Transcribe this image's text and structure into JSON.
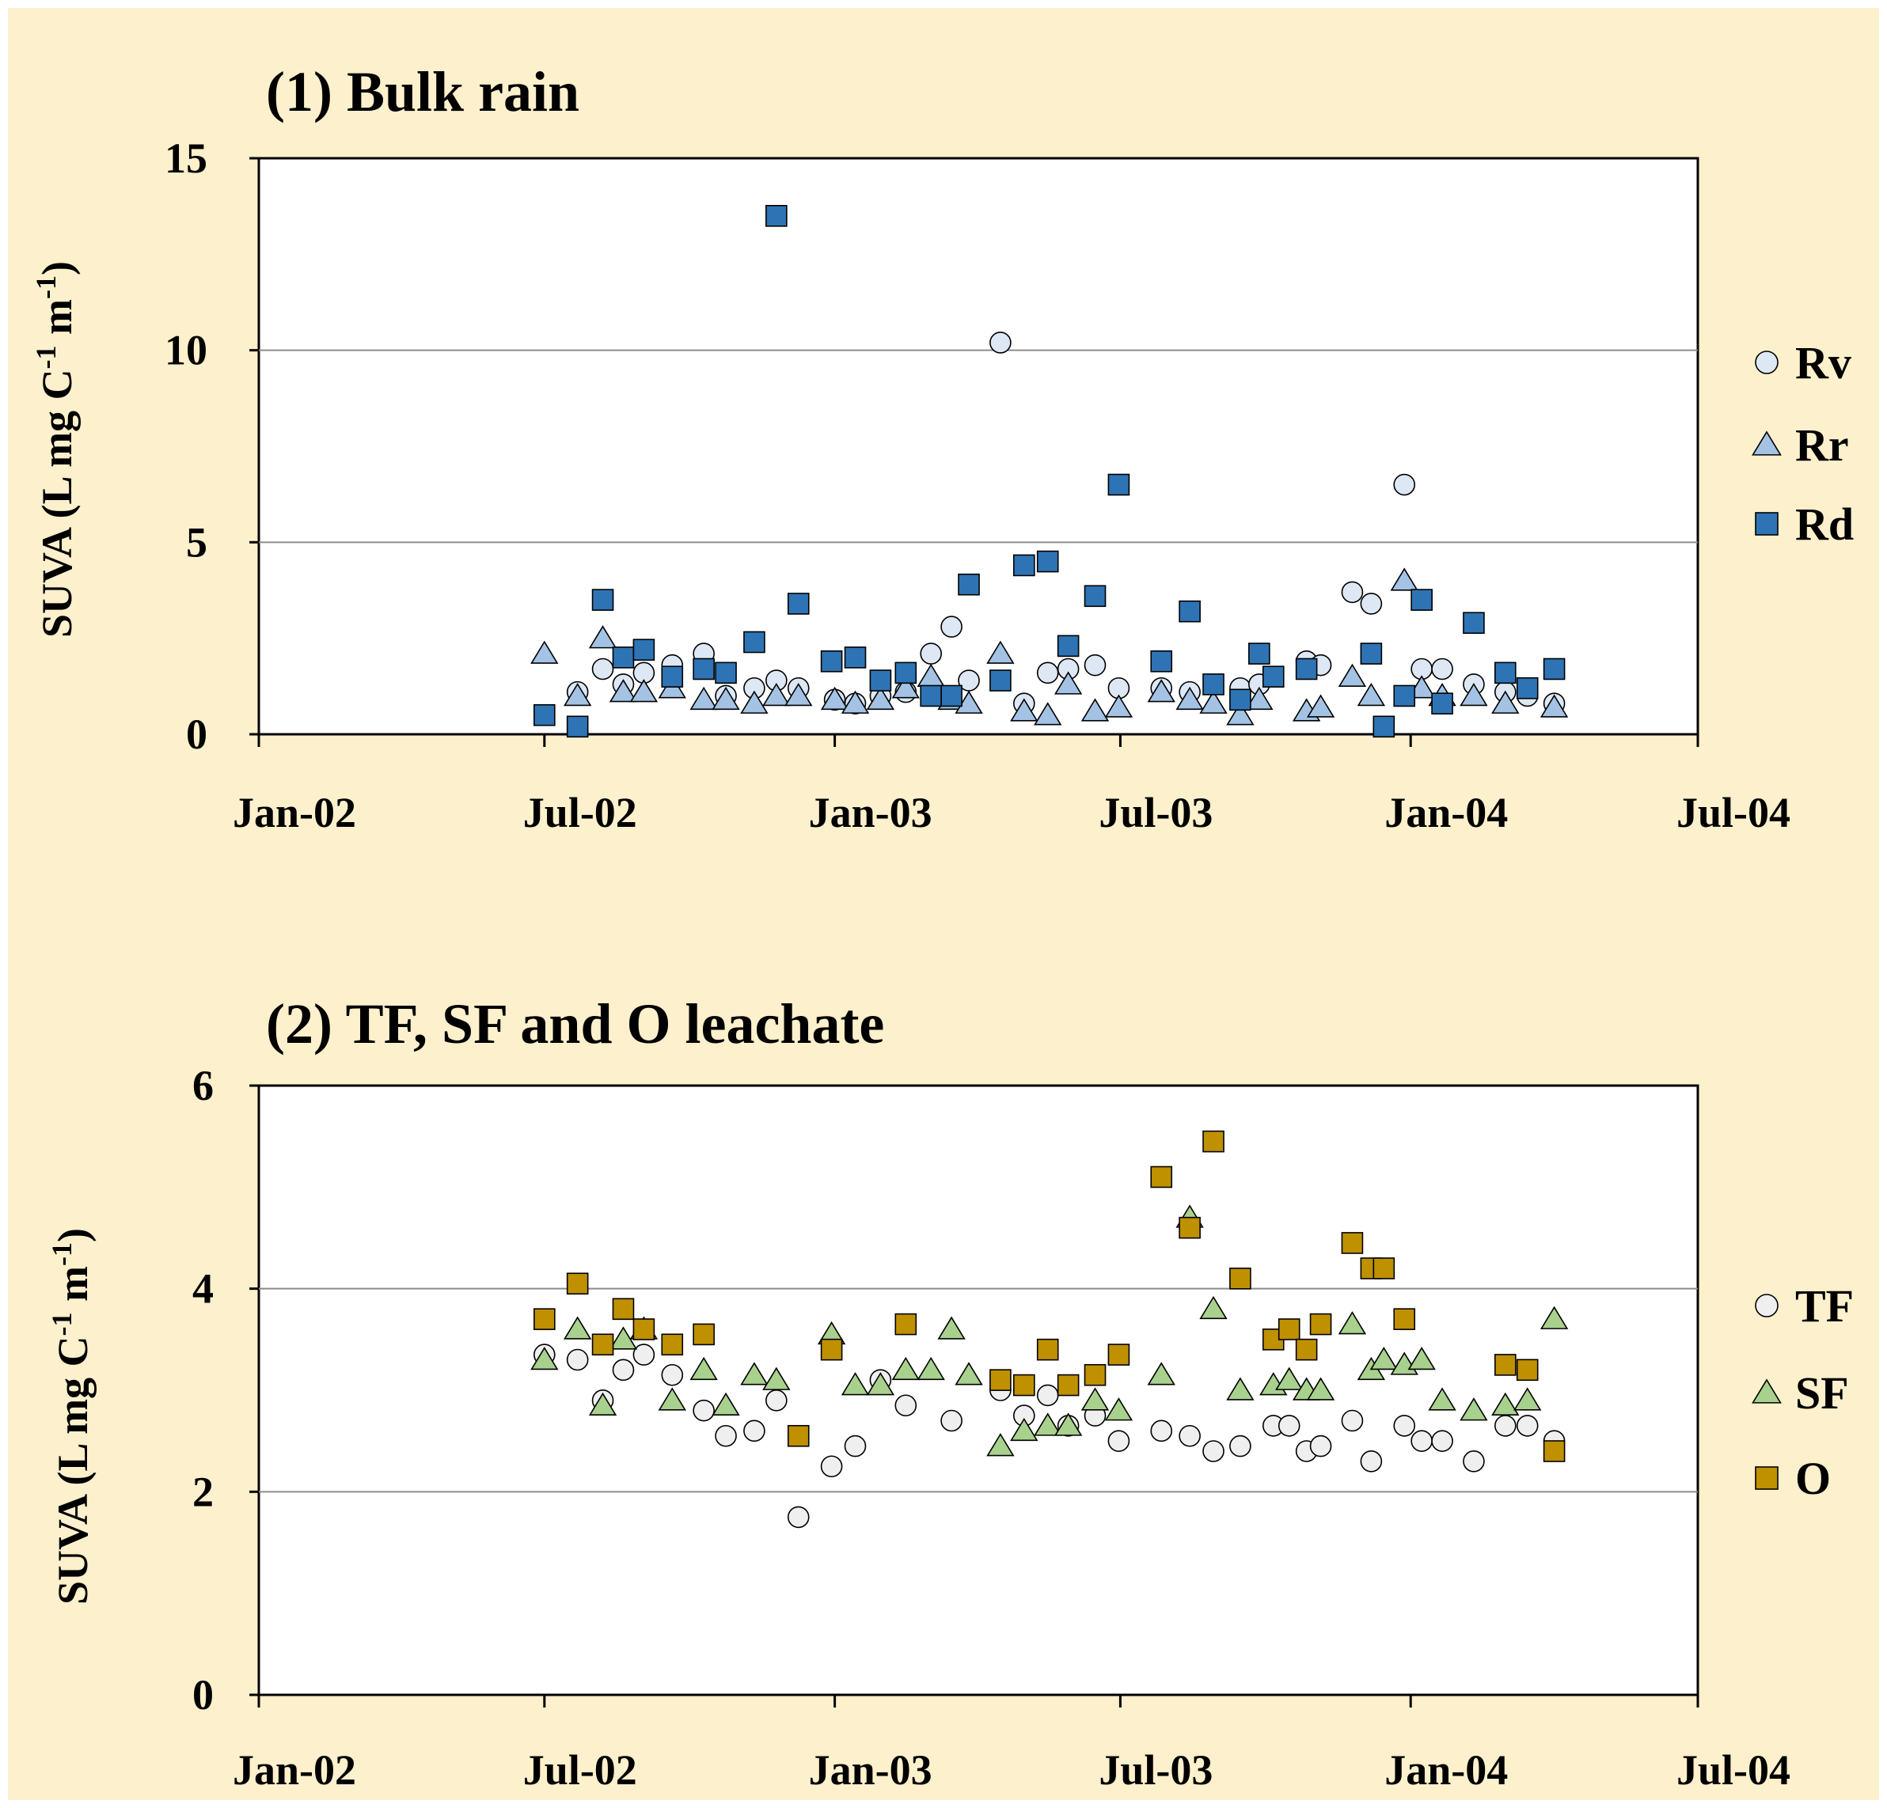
{
  "chart_data": [
    {
      "type": "scatter",
      "title": "(1) Bulk rain",
      "ylabel": "SUVA (L mg C",
      "ylabel_sup1": "-1",
      "ylabel_mid": " m",
      "ylabel_sup2": "-1",
      "ylabel_end": ")",
      "xlim": [
        "2002-01-01",
        "2004-07-01"
      ],
      "ylim": [
        0,
        15
      ],
      "x_ticks": [
        "2002-01-01",
        "2002-07-01",
        "2003-01-01",
        "2003-07-01",
        "2004-01-01",
        "2004-07-01"
      ],
      "x_tick_labels": [
        "Jan-02",
        "Jul-02",
        "Jan-03",
        "Jul-03",
        "Jan-04",
        "Jul-04"
      ],
      "y_ticks": [
        0,
        5,
        10,
        15
      ],
      "y_tick_labels": [
        "0",
        "5",
        "10",
        "15"
      ],
      "grid": "horizontal",
      "legend": "right",
      "series": [
        {
          "name": "Rv",
          "marker": "circle",
          "color": "#dde8f4",
          "points": [
            [
              "2002-07-22",
              1.1
            ],
            [
              "2002-08-07",
              1.7
            ],
            [
              "2002-08-20",
              1.3
            ],
            [
              "2002-09-02",
              1.6
            ],
            [
              "2002-09-20",
              1.8
            ],
            [
              "2002-10-10",
              2.1
            ],
            [
              "2002-10-24",
              1.0
            ],
            [
              "2002-11-11",
              1.2
            ],
            [
              "2002-11-25",
              1.4
            ],
            [
              "2002-12-09",
              1.2
            ],
            [
              "2003-01-01",
              0.9
            ],
            [
              "2003-01-14",
              0.8
            ],
            [
              "2003-01-30",
              1.0
            ],
            [
              "2003-02-15",
              1.1
            ],
            [
              "2003-03-03",
              2.1
            ],
            [
              "2003-03-16",
              2.8
            ],
            [
              "2003-03-27",
              1.4
            ],
            [
              "2003-04-16",
              10.2
            ],
            [
              "2003-05-01",
              0.8
            ],
            [
              "2003-05-16",
              1.6
            ],
            [
              "2003-05-29",
              1.7
            ],
            [
              "2003-06-15",
              1.8
            ],
            [
              "2003-06-30",
              1.2
            ],
            [
              "2003-07-27",
              1.2
            ],
            [
              "2003-08-14",
              1.1
            ],
            [
              "2003-09-15",
              1.2
            ],
            [
              "2003-09-27",
              1.3
            ],
            [
              "2003-10-27",
              1.9
            ],
            [
              "2003-11-05",
              1.8
            ],
            [
              "2003-11-25",
              3.7
            ],
            [
              "2003-12-07",
              3.4
            ],
            [
              "2004-01-08",
              1.7
            ],
            [
              "2004-01-21",
              1.7
            ],
            [
              "2004-02-10",
              1.3
            ],
            [
              "2004-03-01",
              1.1
            ],
            [
              "2004-03-15",
              1.0
            ],
            [
              "2004-04-01",
              0.8
            ],
            [
              "2003-12-28",
              6.5
            ]
          ]
        },
        {
          "name": "Rr",
          "marker": "triangle",
          "color": "#a4c3e4",
          "points": [
            [
              "2002-07-01",
              2.1
            ],
            [
              "2002-07-22",
              1.0
            ],
            [
              "2002-08-07",
              2.5
            ],
            [
              "2002-08-20",
              1.1
            ],
            [
              "2002-09-02",
              1.1
            ],
            [
              "2002-09-20",
              1.2
            ],
            [
              "2002-10-10",
              0.9
            ],
            [
              "2002-10-24",
              0.9
            ],
            [
              "2002-11-11",
              0.8
            ],
            [
              "2002-11-25",
              1.0
            ],
            [
              "2002-12-09",
              1.0
            ],
            [
              "2003-01-01",
              0.9
            ],
            [
              "2003-01-14",
              0.8
            ],
            [
              "2003-01-30",
              0.9
            ],
            [
              "2003-02-15",
              1.2
            ],
            [
              "2003-03-03",
              1.5
            ],
            [
              "2003-03-16",
              0.9
            ],
            [
              "2003-03-27",
              0.8
            ],
            [
              "2003-04-16",
              2.1
            ],
            [
              "2003-05-01",
              0.6
            ],
            [
              "2003-05-16",
              0.5
            ],
            [
              "2003-05-29",
              1.3
            ],
            [
              "2003-06-15",
              0.6
            ],
            [
              "2003-06-30",
              0.7
            ],
            [
              "2003-07-27",
              1.1
            ],
            [
              "2003-08-14",
              0.9
            ],
            [
              "2003-08-29",
              0.8
            ],
            [
              "2003-09-15",
              0.5
            ],
            [
              "2003-09-27",
              0.9
            ],
            [
              "2003-10-27",
              0.6
            ],
            [
              "2003-11-05",
              0.7
            ],
            [
              "2003-11-25",
              1.5
            ],
            [
              "2003-12-07",
              1.0
            ],
            [
              "2003-12-28",
              4.0
            ],
            [
              "2004-01-08",
              1.2
            ],
            [
              "2004-01-21",
              1.0
            ],
            [
              "2004-02-10",
              1.0
            ],
            [
              "2004-03-01",
              0.8
            ],
            [
              "2004-04-01",
              0.7
            ]
          ]
        },
        {
          "name": "Rd",
          "marker": "square",
          "color": "#2e74b5",
          "points": [
            [
              "2002-07-01",
              0.5
            ],
            [
              "2002-07-22",
              0.2
            ],
            [
              "2002-08-07",
              3.5
            ],
            [
              "2002-08-20",
              2.0
            ],
            [
              "2002-09-02",
              2.2
            ],
            [
              "2002-09-20",
              1.5
            ],
            [
              "2002-10-10",
              1.7
            ],
            [
              "2002-10-24",
              1.6
            ],
            [
              "2002-11-11",
              2.4
            ],
            [
              "2002-11-25",
              13.5
            ],
            [
              "2002-12-09",
              3.4
            ],
            [
              "2002-12-30",
              1.9
            ],
            [
              "2003-01-14",
              2.0
            ],
            [
              "2003-01-30",
              1.4
            ],
            [
              "2003-02-15",
              1.6
            ],
            [
              "2003-03-03",
              1.0
            ],
            [
              "2003-03-16",
              1.0
            ],
            [
              "2003-03-27",
              3.9
            ],
            [
              "2003-04-16",
              1.4
            ],
            [
              "2003-05-01",
              4.4
            ],
            [
              "2003-05-16",
              4.5
            ],
            [
              "2003-05-29",
              2.3
            ],
            [
              "2003-06-15",
              3.6
            ],
            [
              "2003-06-30",
              6.5
            ],
            [
              "2003-07-27",
              1.9
            ],
            [
              "2003-08-14",
              3.2
            ],
            [
              "2003-08-29",
              1.3
            ],
            [
              "2003-09-15",
              0.9
            ],
            [
              "2003-09-27",
              2.1
            ],
            [
              "2003-10-06",
              1.5
            ],
            [
              "2003-10-27",
              1.7
            ],
            [
              "2003-12-07",
              2.1
            ],
            [
              "2003-12-15",
              0.2
            ],
            [
              "2003-12-28",
              1.0
            ],
            [
              "2004-01-08",
              3.5
            ],
            [
              "2004-01-21",
              0.8
            ],
            [
              "2004-02-10",
              2.9
            ],
            [
              "2004-03-01",
              1.6
            ],
            [
              "2004-03-15",
              1.2
            ],
            [
              "2004-04-01",
              1.7
            ]
          ]
        }
      ]
    },
    {
      "type": "scatter",
      "title": "(2) TF, SF and O leachate",
      "ylabel": "SUVA (L mg C",
      "ylabel_sup1": "-1",
      "ylabel_mid": " m",
      "ylabel_sup2": "-1",
      "ylabel_end": ")",
      "xlim": [
        "2002-01-01",
        "2004-07-01"
      ],
      "ylim": [
        0,
        6
      ],
      "x_ticks": [
        "2002-01-01",
        "2002-07-01",
        "2003-01-01",
        "2003-07-01",
        "2004-01-01",
        "2004-07-01"
      ],
      "x_tick_labels": [
        "Jan-02",
        "Jul-02",
        "Jan-03",
        "Jul-03",
        "Jan-04",
        "Jul-04"
      ],
      "y_ticks": [
        0,
        2,
        4,
        6
      ],
      "y_tick_labels": [
        "0",
        "2",
        "4",
        "6"
      ],
      "grid": "horizontal",
      "legend": "right",
      "series": [
        {
          "name": "TF",
          "marker": "circle",
          "color": "#efefef",
          "points": [
            [
              "2002-07-01",
              3.35
            ],
            [
              "2002-07-22",
              3.3
            ],
            [
              "2002-08-07",
              2.9
            ],
            [
              "2002-08-20",
              3.2
            ],
            [
              "2002-09-02",
              3.35
            ],
            [
              "2002-09-20",
              3.15
            ],
            [
              "2002-10-10",
              2.8
            ],
            [
              "2002-10-24",
              2.55
            ],
            [
              "2002-11-11",
              2.6
            ],
            [
              "2002-11-25",
              2.9
            ],
            [
              "2002-12-09",
              1.75
            ],
            [
              "2002-12-30",
              2.25
            ],
            [
              "2003-01-14",
              2.45
            ],
            [
              "2003-01-30",
              3.1
            ],
            [
              "2003-02-15",
              2.85
            ],
            [
              "2003-03-16",
              2.7
            ],
            [
              "2003-04-16",
              3.0
            ],
            [
              "2003-05-01",
              2.75
            ],
            [
              "2003-05-16",
              2.95
            ],
            [
              "2003-05-29",
              2.65
            ],
            [
              "2003-06-15",
              2.75
            ],
            [
              "2003-06-30",
              2.5
            ],
            [
              "2003-07-27",
              2.6
            ],
            [
              "2003-08-14",
              2.55
            ],
            [
              "2003-08-29",
              2.4
            ],
            [
              "2003-09-15",
              2.45
            ],
            [
              "2003-10-06",
              2.65
            ],
            [
              "2003-10-16",
              2.65
            ],
            [
              "2003-10-27",
              2.4
            ],
            [
              "2003-11-05",
              2.45
            ],
            [
              "2003-11-25",
              2.7
            ],
            [
              "2003-12-07",
              2.3
            ],
            [
              "2003-12-28",
              2.65
            ],
            [
              "2004-01-08",
              2.5
            ],
            [
              "2004-01-21",
              2.5
            ],
            [
              "2004-02-10",
              2.3
            ],
            [
              "2004-03-01",
              2.65
            ],
            [
              "2004-03-15",
              2.65
            ],
            [
              "2004-04-01",
              2.5
            ]
          ]
        },
        {
          "name": "SF",
          "marker": "triangle",
          "color": "#a9d18e",
          "points": [
            [
              "2002-07-01",
              3.3
            ],
            [
              "2002-07-22",
              3.6
            ],
            [
              "2002-08-07",
              2.85
            ],
            [
              "2002-08-20",
              3.5
            ],
            [
              "2002-09-02",
              3.6
            ],
            [
              "2002-09-20",
              2.9
            ],
            [
              "2002-10-10",
              3.2
            ],
            [
              "2002-10-24",
              2.85
            ],
            [
              "2002-11-11",
              3.15
            ],
            [
              "2002-11-25",
              3.1
            ],
            [
              "2002-12-30",
              3.55
            ],
            [
              "2003-01-14",
              3.05
            ],
            [
              "2003-01-30",
              3.05
            ],
            [
              "2003-02-15",
              3.2
            ],
            [
              "2003-03-03",
              3.2
            ],
            [
              "2003-03-16",
              3.6
            ],
            [
              "2003-03-27",
              3.15
            ],
            [
              "2003-04-16",
              2.45
            ],
            [
              "2003-05-01",
              2.6
            ],
            [
              "2003-05-16",
              2.65
            ],
            [
              "2003-05-29",
              2.65
            ],
            [
              "2003-06-15",
              2.9
            ],
            [
              "2003-06-30",
              2.8
            ],
            [
              "2003-07-27",
              3.15
            ],
            [
              "2003-08-14",
              4.7
            ],
            [
              "2003-08-29",
              3.8
            ],
            [
              "2003-09-15",
              3.0
            ],
            [
              "2003-10-06",
              3.05
            ],
            [
              "2003-10-16",
              3.1
            ],
            [
              "2003-10-27",
              3.0
            ],
            [
              "2003-11-05",
              3.0
            ],
            [
              "2003-11-25",
              3.65
            ],
            [
              "2003-12-07",
              3.2
            ],
            [
              "2003-12-15",
              3.3
            ],
            [
              "2003-12-28",
              3.25
            ],
            [
              "2004-01-08",
              3.3
            ],
            [
              "2004-01-21",
              2.9
            ],
            [
              "2004-02-10",
              2.8
            ],
            [
              "2004-03-01",
              2.85
            ],
            [
              "2004-03-15",
              2.9
            ],
            [
              "2004-04-01",
              3.7
            ]
          ]
        },
        {
          "name": "O",
          "marker": "square",
          "color": "#bf9000",
          "points": [
            [
              "2002-07-01",
              3.7
            ],
            [
              "2002-07-22",
              4.05
            ],
            [
              "2002-08-07",
              3.45
            ],
            [
              "2002-08-20",
              3.8
            ],
            [
              "2002-09-02",
              3.6
            ],
            [
              "2002-09-20",
              3.45
            ],
            [
              "2002-10-10",
              3.55
            ],
            [
              "2002-12-09",
              2.55
            ],
            [
              "2002-12-30",
              3.4
            ],
            [
              "2003-02-15",
              3.65
            ],
            [
              "2003-04-16",
              3.1
            ],
            [
              "2003-05-01",
              3.05
            ],
            [
              "2003-05-16",
              3.4
            ],
            [
              "2003-05-29",
              3.05
            ],
            [
              "2003-06-15",
              3.15
            ],
            [
              "2003-06-30",
              3.35
            ],
            [
              "2003-07-27",
              5.1
            ],
            [
              "2003-08-14",
              4.6
            ],
            [
              "2003-08-29",
              5.45
            ],
            [
              "2003-09-15",
              4.1
            ],
            [
              "2003-10-06",
              3.5
            ],
            [
              "2003-10-16",
              3.6
            ],
            [
              "2003-10-27",
              3.4
            ],
            [
              "2003-11-05",
              3.65
            ],
            [
              "2003-11-25",
              4.45
            ],
            [
              "2003-12-07",
              4.2
            ],
            [
              "2003-12-28",
              3.7
            ],
            [
              "2003-12-15",
              4.2
            ],
            [
              "2004-03-01",
              3.25
            ],
            [
              "2004-03-15",
              3.2
            ],
            [
              "2004-04-01",
              2.4
            ]
          ]
        }
      ]
    }
  ]
}
